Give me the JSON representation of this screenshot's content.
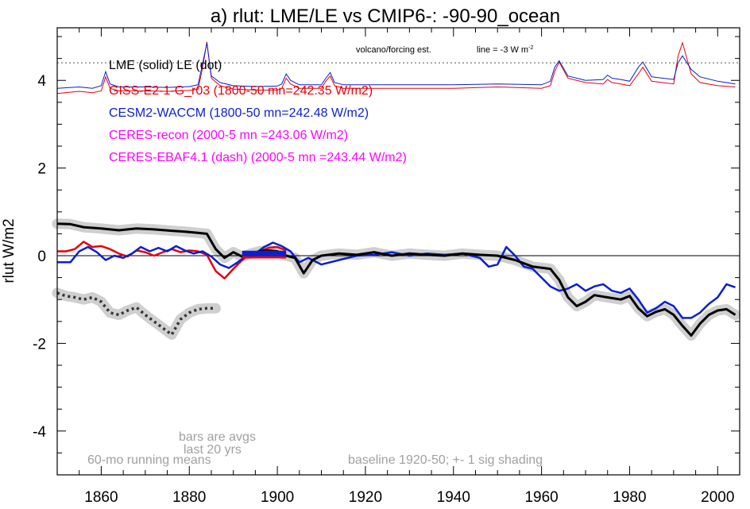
{
  "chart_data": {
    "type": "line",
    "title": "a) rlut: LME/LE vs CMIP6-: -90-90_ocean",
    "xlabel": "",
    "ylabel": "rlut W/m2",
    "xlim": [
      1850,
      2005
    ],
    "ylim": [
      -5,
      5.2
    ],
    "x_ticks": [
      1860,
      1880,
      1900,
      1920,
      1940,
      1960,
      1980,
      2000
    ],
    "y_ticks": [
      -4,
      -2,
      0,
      2,
      4
    ],
    "grid": false,
    "zero_line": true,
    "legend": [
      {
        "text": "LME (solid)   LE (dot)",
        "color": "#000000"
      },
      {
        "text": "GISS-E2-1-G_r03 (1800-50 mn=242.35 W/m2)",
        "color": "#e8000b"
      },
      {
        "text": "CESM2-WACCM (1800-50 mn=242.48 W/m2)",
        "color": "#0a1fd0"
      },
      {
        "text": "CERES-recon (2000-5 mn =243.06 W/m2)",
        "color": "#ff00ff"
      },
      {
        "text": "CERES-EBAF4.1 (dash) (2000-5 mn =243.44 W/m2)",
        "color": "#ff00ff"
      }
    ],
    "annotations": {
      "volcano_label": "volcano/forcing est.",
      "line_label": "line = -3 W m",
      "line_label_sup": "-2",
      "bars_note_1": "bars are avgs",
      "bars_note_2": "last 20 yrs",
      "running_mean_note": "60-mo running means",
      "baseline_note": "baseline 1920-50; +- 1 sig shading"
    },
    "volcano_reference_y": 4.4,
    "colors": {
      "lme": "#000000",
      "giss": "#e8000b",
      "cesm": "#0a1fd0",
      "shade": "#cfcfcf",
      "annotation_grey": "#a0a0a0",
      "reference_line": "#555555"
    },
    "series": [
      {
        "name": "LME (solid)",
        "color": "#000000",
        "x": [
          1850,
          1853,
          1856,
          1860,
          1864,
          1868,
          1872,
          1876,
          1879,
          1882,
          1884,
          1886,
          1888,
          1890,
          1892,
          1894,
          1896,
          1898,
          1900,
          1902,
          1904,
          1906,
          1908,
          1910,
          1914,
          1918,
          1922,
          1926,
          1930,
          1934,
          1938,
          1942,
          1946,
          1950,
          1954,
          1958,
          1962,
          1964,
          1966,
          1968,
          1970,
          1972,
          1975,
          1978,
          1980,
          1982,
          1984,
          1986,
          1988,
          1990,
          1992,
          1994,
          1996,
          1998,
          2000,
          2002,
          2004
        ],
        "y": [
          0.73,
          0.72,
          0.65,
          0.62,
          0.58,
          0.62,
          0.6,
          0.57,
          0.55,
          0.52,
          0.5,
          0.15,
          -0.05,
          0.08,
          -0.02,
          0.05,
          0.1,
          0.12,
          0.1,
          0.0,
          -0.05,
          -0.4,
          -0.1,
          0.0,
          0.05,
          0.02,
          0.08,
          0.0,
          0.05,
          0.02,
          0.0,
          0.05,
          0.02,
          0.0,
          -0.1,
          -0.25,
          -0.3,
          -0.55,
          -0.95,
          -1.15,
          -1.05,
          -0.9,
          -0.95,
          -1.0,
          -0.92,
          -1.2,
          -1.38,
          -1.28,
          -1.22,
          -1.35,
          -1.6,
          -1.82,
          -1.55,
          -1.35,
          -1.25,
          -1.22,
          -1.35
        ]
      },
      {
        "name": "GISS-E2-1-G_r03",
        "color": "#e8000b",
        "x": [
          1850,
          1852,
          1854,
          1856,
          1858,
          1860,
          1862,
          1864,
          1866,
          1868,
          1870,
          1872,
          1874,
          1876,
          1878,
          1880,
          1882,
          1884,
          1886,
          1888,
          1890,
          1892,
          1894,
          1896,
          1898,
          1900,
          1902
        ],
        "y": [
          0.1,
          0.1,
          0.15,
          0.32,
          0.2,
          0.22,
          0.15,
          0.05,
          -0.02,
          0.12,
          0.08,
          0.0,
          0.08,
          0.15,
          0.08,
          0.12,
          0.1,
          0.02,
          -0.35,
          -0.52,
          -0.3,
          -0.1,
          0.05,
          0.1,
          0.18,
          0.2,
          0.12
        ]
      },
      {
        "name": "CESM2-WACCM",
        "color": "#0a1fd0",
        "x": [
          1850,
          1853,
          1855,
          1857,
          1859,
          1861,
          1863,
          1865,
          1867,
          1869,
          1871,
          1873,
          1875,
          1877,
          1879,
          1881,
          1883,
          1885,
          1887,
          1889,
          1891,
          1893,
          1895,
          1897,
          1899,
          1901,
          1903,
          1905,
          1907,
          1910,
          1914,
          1918,
          1922,
          1926,
          1930,
          1934,
          1938,
          1942,
          1946,
          1948,
          1950,
          1952,
          1954,
          1956,
          1958,
          1960,
          1962,
          1964,
          1966,
          1968,
          1970,
          1972,
          1974,
          1976,
          1978,
          1980,
          1982,
          1984,
          1986,
          1988,
          1990,
          1992,
          1994,
          1996,
          1998,
          2000,
          2002,
          2004
        ],
        "y": [
          -0.15,
          -0.15,
          0.1,
          0.2,
          0.08,
          -0.1,
          0.0,
          -0.05,
          0.05,
          0.2,
          0.1,
          0.18,
          0.1,
          0.22,
          0.12,
          0.05,
          0.1,
          -0.02,
          -0.2,
          -0.28,
          -0.15,
          0.0,
          0.05,
          0.2,
          0.3,
          0.22,
          0.1,
          -0.15,
          -0.05,
          -0.2,
          -0.1,
          0.0,
          0.02,
          0.08,
          0.0,
          0.05,
          0.02,
          0.05,
          -0.05,
          -0.25,
          -0.2,
          0.2,
          0.0,
          -0.25,
          -0.3,
          -0.5,
          -0.7,
          -0.8,
          -0.75,
          -0.65,
          -0.8,
          -0.7,
          -0.65,
          -0.8,
          -0.85,
          -0.75,
          -1.0,
          -1.3,
          -1.2,
          -1.05,
          -1.15,
          -1.42,
          -1.42,
          -1.3,
          -1.1,
          -0.95,
          -0.65,
          -0.72
        ]
      },
      {
        "name": "LE (dot)",
        "color": "#333333",
        "x": [
          1850,
          1852,
          1854,
          1856,
          1858,
          1860,
          1862,
          1864,
          1866,
          1868,
          1870,
          1872,
          1874,
          1876,
          1878,
          1880,
          1882,
          1884,
          1886
        ],
        "y": [
          -0.85,
          -0.92,
          -0.95,
          -1.0,
          -0.95,
          -1.05,
          -1.3,
          -1.35,
          -1.25,
          -1.18,
          -1.35,
          -1.5,
          -1.65,
          -1.8,
          -1.45,
          -1.3,
          -1.22,
          -1.2,
          -1.2
        ]
      }
    ],
    "forcing_lines": [
      {
        "name": "forcing-red",
        "color": "#e8000b",
        "x": [
          1850,
          1855,
          1858,
          1860,
          1861,
          1862,
          1864,
          1870,
          1875,
          1880,
          1882,
          1883,
          1884,
          1885,
          1887,
          1890,
          1895,
          1900,
          1901,
          1902,
          1903,
          1905,
          1910,
          1911,
          1912,
          1913,
          1915,
          1920,
          1930,
          1940,
          1950,
          1960,
          1962,
          1963,
          1964,
          1966,
          1970,
          1974,
          1975,
          1976,
          1978,
          1980,
          1982,
          1983,
          1985,
          1990,
          1991,
          1992,
          1994,
          1996,
          2000,
          2004
        ],
        "y": [
          3.7,
          3.75,
          3.72,
          3.76,
          4.08,
          3.82,
          3.76,
          3.76,
          3.75,
          3.77,
          3.8,
          4.28,
          4.88,
          4.05,
          3.88,
          3.8,
          3.78,
          3.78,
          3.82,
          4.05,
          3.92,
          3.82,
          3.82,
          3.98,
          4.1,
          3.88,
          3.82,
          3.82,
          3.82,
          3.82,
          3.85,
          3.82,
          3.88,
          4.2,
          4.42,
          4.05,
          3.95,
          3.92,
          4.02,
          3.95,
          3.92,
          3.88,
          4.15,
          4.3,
          3.98,
          3.92,
          4.55,
          4.86,
          4.15,
          3.95,
          3.88,
          3.85
        ]
      },
      {
        "name": "forcing-blue",
        "color": "#0a1fd0",
        "x": [
          1850,
          1855,
          1858,
          1860,
          1861,
          1862,
          1864,
          1870,
          1875,
          1880,
          1882,
          1883,
          1884,
          1885,
          1887,
          1890,
          1895,
          1900,
          1901,
          1902,
          1903,
          1905,
          1910,
          1911,
          1912,
          1913,
          1915,
          1920,
          1930,
          1940,
          1950,
          1960,
          1962,
          1963,
          1964,
          1966,
          1970,
          1974,
          1975,
          1976,
          1978,
          1980,
          1982,
          1983,
          1985,
          1990,
          1991,
          1992,
          1994,
          1996,
          2000,
          2004
        ],
        "y": [
          3.82,
          3.85,
          3.82,
          3.88,
          4.2,
          3.92,
          3.85,
          3.85,
          3.84,
          3.86,
          3.9,
          4.38,
          4.85,
          4.1,
          3.95,
          3.88,
          3.86,
          3.87,
          3.92,
          4.15,
          4.0,
          3.9,
          3.9,
          4.05,
          4.18,
          3.95,
          3.9,
          3.9,
          3.9,
          3.9,
          3.92,
          3.9,
          3.98,
          4.3,
          4.45,
          4.1,
          4.0,
          4.02,
          4.12,
          4.05,
          4.02,
          3.98,
          4.3,
          4.42,
          4.08,
          4.02,
          4.4,
          4.56,
          4.25,
          4.08,
          3.98,
          3.92
        ]
      }
    ],
    "bars": [
      {
        "name": "giss-avg-bar",
        "color": "#e8000b",
        "x_start": 1892,
        "x_end": 1902,
        "y": 0.0
      },
      {
        "name": "cesm-avg-bar",
        "color": "#0a1fd0",
        "x_start": 1892,
        "x_end": 1902,
        "y": 0.05
      }
    ]
  }
}
